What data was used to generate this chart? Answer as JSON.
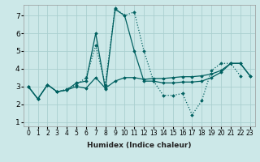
{
  "xlabel": "Humidex (Indice chaleur)",
  "bg_color": "#cce8e8",
  "grid_color": "#aacfcf",
  "line_color": "#006060",
  "xlim": [
    -0.5,
    23.5
  ],
  "ylim": [
    0.75,
    7.6
  ],
  "xticks": [
    0,
    1,
    2,
    3,
    4,
    5,
    6,
    7,
    8,
    9,
    10,
    11,
    12,
    13,
    14,
    15,
    16,
    17,
    18,
    19,
    20,
    21,
    22,
    23
  ],
  "yticks": [
    1,
    2,
    3,
    4,
    5,
    6,
    7
  ],
  "series": [
    {
      "y": [
        3.0,
        2.3,
        3.1,
        2.7,
        2.8,
        3.0,
        2.9,
        3.5,
        2.9,
        3.3,
        3.5,
        3.5,
        3.4,
        3.45,
        3.45,
        3.5,
        3.55,
        3.55,
        3.6,
        3.7,
        3.9,
        4.3,
        4.3,
        3.6
      ],
      "linestyle": "-",
      "linewidth": 0.9,
      "marker": "D",
      "markersize": 1.8
    },
    {
      "y": [
        3.0,
        2.3,
        3.1,
        2.7,
        2.8,
        3.2,
        3.3,
        6.0,
        2.85,
        7.35,
        7.0,
        5.0,
        3.3,
        3.3,
        3.2,
        3.2,
        3.25,
        3.25,
        3.3,
        3.5,
        3.8,
        4.3,
        4.3,
        3.6
      ],
      "linestyle": "-",
      "linewidth": 0.9,
      "marker": "D",
      "markersize": 1.8
    },
    {
      "y": [
        3.0,
        2.3,
        3.1,
        2.7,
        2.85,
        3.1,
        3.5,
        5.3,
        3.1,
        7.4,
        7.0,
        7.2,
        5.0,
        3.3,
        2.5,
        2.5,
        2.6,
        1.4,
        2.2,
        3.9,
        4.3,
        4.3,
        3.6
      ],
      "linestyle": ":",
      "linewidth": 0.9,
      "marker": "D",
      "markersize": 1.8
    }
  ],
  "xlabel_fontsize": 6.5,
  "tick_fontsize_x": 5.5,
  "tick_fontsize_y": 6.5
}
